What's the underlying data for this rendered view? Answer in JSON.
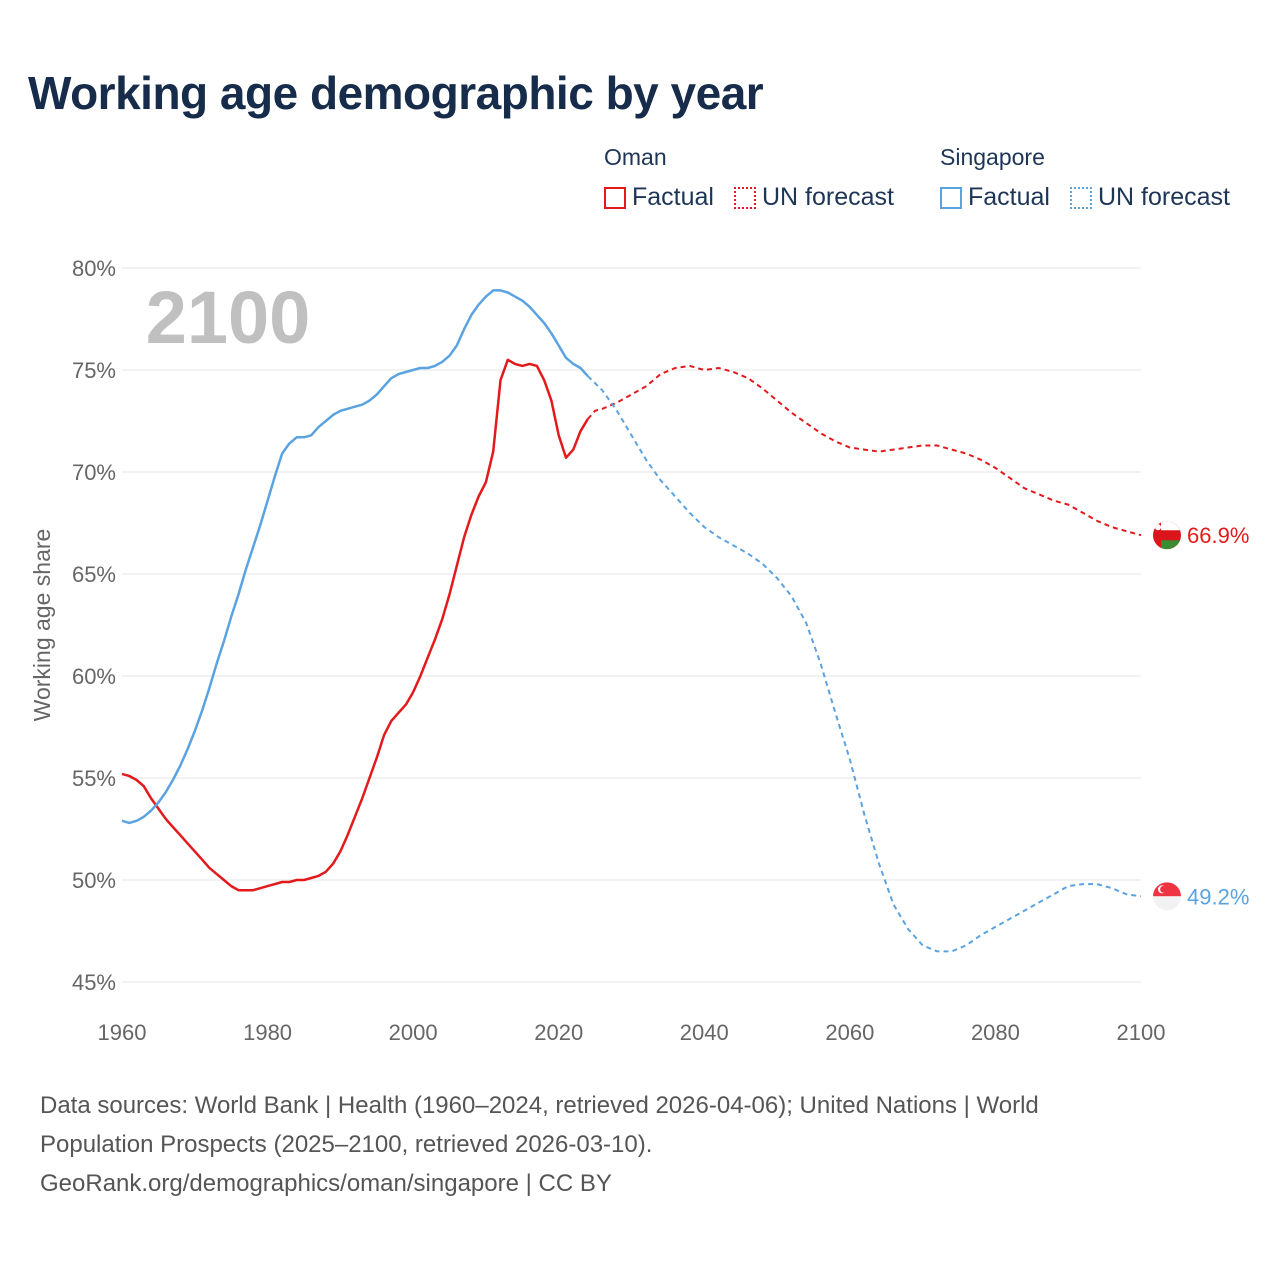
{
  "title": "Working age demographic by year",
  "footer": {
    "line1": "Data sources: World Bank | Health (1960–2024, retrieved 2026-04-06); United Nations | World",
    "line2": "Population Prospects (2025–2100, retrieved 2026-03-10).",
    "line3": "GeoRank.org/demographics/oman/singapore | CC BY"
  },
  "legend": {
    "groups": [
      {
        "name": "Oman",
        "color": "#e31a1c",
        "factual": "Factual",
        "forecast": "UN forecast"
      },
      {
        "name": "Singapore",
        "color": "#5ba3e0",
        "factual": "Factual",
        "forecast": "UN forecast"
      }
    ]
  },
  "chart_data": {
    "type": "line",
    "ylabel": "Working age share",
    "xlabel": "",
    "xlim": [
      1960,
      2100
    ],
    "ylim": [
      45,
      80
    ],
    "xticks": [
      1960,
      1980,
      2000,
      2020,
      2040,
      2060,
      2080,
      2100
    ],
    "yticks": [
      45,
      50,
      55,
      60,
      65,
      70,
      75,
      80
    ],
    "year_watermark": "2100",
    "series": [
      {
        "name": "Oman",
        "color": "#e31a1c",
        "end_label": "66.9%",
        "factual": [
          [
            1960,
            55.2
          ],
          [
            1961,
            55.1
          ],
          [
            1962,
            54.9
          ],
          [
            1963,
            54.6
          ],
          [
            1964,
            54.0
          ],
          [
            1965,
            53.5
          ],
          [
            1966,
            53.0
          ],
          [
            1967,
            52.6
          ],
          [
            1968,
            52.2
          ],
          [
            1969,
            51.8
          ],
          [
            1970,
            51.4
          ],
          [
            1971,
            51.0
          ],
          [
            1972,
            50.6
          ],
          [
            1973,
            50.3
          ],
          [
            1974,
            50.0
          ],
          [
            1975,
            49.7
          ],
          [
            1976,
            49.5
          ],
          [
            1977,
            49.5
          ],
          [
            1978,
            49.5
          ],
          [
            1979,
            49.6
          ],
          [
            1980,
            49.7
          ],
          [
            1981,
            49.8
          ],
          [
            1982,
            49.9
          ],
          [
            1983,
            49.9
          ],
          [
            1984,
            50.0
          ],
          [
            1985,
            50.0
          ],
          [
            1986,
            50.1
          ],
          [
            1987,
            50.2
          ],
          [
            1988,
            50.4
          ],
          [
            1989,
            50.8
          ],
          [
            1990,
            51.4
          ],
          [
            1991,
            52.2
          ],
          [
            1992,
            53.1
          ],
          [
            1993,
            54.0
          ],
          [
            1994,
            55.0
          ],
          [
            1995,
            56.0
          ],
          [
            1996,
            57.1
          ],
          [
            1997,
            57.8
          ],
          [
            1998,
            58.2
          ],
          [
            1999,
            58.6
          ],
          [
            2000,
            59.2
          ],
          [
            2001,
            60.0
          ],
          [
            2002,
            60.9
          ],
          [
            2003,
            61.8
          ],
          [
            2004,
            62.8
          ],
          [
            2005,
            64.0
          ],
          [
            2006,
            65.4
          ],
          [
            2007,
            66.8
          ],
          [
            2008,
            67.9
          ],
          [
            2009,
            68.8
          ],
          [
            2010,
            69.5
          ],
          [
            2011,
            71.0
          ],
          [
            2012,
            74.5
          ],
          [
            2013,
            75.5
          ],
          [
            2014,
            75.3
          ],
          [
            2015,
            75.2
          ],
          [
            2016,
            75.3
          ],
          [
            2017,
            75.2
          ],
          [
            2018,
            74.5
          ],
          [
            2019,
            73.5
          ],
          [
            2020,
            71.8
          ],
          [
            2021,
            70.7
          ],
          [
            2022,
            71.1
          ],
          [
            2023,
            72.0
          ],
          [
            2024,
            72.6
          ]
        ],
        "forecast": [
          [
            2024,
            72.6
          ],
          [
            2025,
            73.0
          ],
          [
            2026,
            73.1
          ],
          [
            2028,
            73.4
          ],
          [
            2030,
            73.8
          ],
          [
            2032,
            74.2
          ],
          [
            2034,
            74.8
          ],
          [
            2036,
            75.1
          ],
          [
            2038,
            75.2
          ],
          [
            2040,
            75.0
          ],
          [
            2042,
            75.1
          ],
          [
            2044,
            74.9
          ],
          [
            2046,
            74.6
          ],
          [
            2048,
            74.1
          ],
          [
            2050,
            73.5
          ],
          [
            2052,
            72.9
          ],
          [
            2054,
            72.4
          ],
          [
            2056,
            71.9
          ],
          [
            2058,
            71.5
          ],
          [
            2060,
            71.2
          ],
          [
            2062,
            71.1
          ],
          [
            2064,
            71.0
          ],
          [
            2066,
            71.1
          ],
          [
            2068,
            71.2
          ],
          [
            2070,
            71.3
          ],
          [
            2072,
            71.3
          ],
          [
            2074,
            71.1
          ],
          [
            2076,
            70.9
          ],
          [
            2078,
            70.6
          ],
          [
            2080,
            70.2
          ],
          [
            2082,
            69.7
          ],
          [
            2084,
            69.2
          ],
          [
            2086,
            68.9
          ],
          [
            2088,
            68.6
          ],
          [
            2090,
            68.4
          ],
          [
            2092,
            68.0
          ],
          [
            2094,
            67.6
          ],
          [
            2096,
            67.3
          ],
          [
            2098,
            67.1
          ],
          [
            2100,
            66.9
          ]
        ]
      },
      {
        "name": "Singapore",
        "color": "#5ba3e0",
        "end_label": "49.2%",
        "factual": [
          [
            1960,
            52.9
          ],
          [
            1961,
            52.8
          ],
          [
            1962,
            52.9
          ],
          [
            1963,
            53.1
          ],
          [
            1964,
            53.4
          ],
          [
            1965,
            53.8
          ],
          [
            1966,
            54.3
          ],
          [
            1967,
            54.9
          ],
          [
            1968,
            55.6
          ],
          [
            1969,
            56.4
          ],
          [
            1970,
            57.3
          ],
          [
            1971,
            58.3
          ],
          [
            1972,
            59.4
          ],
          [
            1973,
            60.6
          ],
          [
            1974,
            61.7
          ],
          [
            1975,
            62.9
          ],
          [
            1976,
            64.0
          ],
          [
            1977,
            65.2
          ],
          [
            1978,
            66.3
          ],
          [
            1979,
            67.4
          ],
          [
            1980,
            68.6
          ],
          [
            1981,
            69.8
          ],
          [
            1982,
            70.9
          ],
          [
            1983,
            71.4
          ],
          [
            1984,
            71.7
          ],
          [
            1985,
            71.7
          ],
          [
            1986,
            71.8
          ],
          [
            1987,
            72.2
          ],
          [
            1988,
            72.5
          ],
          [
            1989,
            72.8
          ],
          [
            1990,
            73.0
          ],
          [
            1991,
            73.1
          ],
          [
            1992,
            73.2
          ],
          [
            1993,
            73.3
          ],
          [
            1994,
            73.5
          ],
          [
            1995,
            73.8
          ],
          [
            1996,
            74.2
          ],
          [
            1997,
            74.6
          ],
          [
            1998,
            74.8
          ],
          [
            1999,
            74.9
          ],
          [
            2000,
            75.0
          ],
          [
            2001,
            75.1
          ],
          [
            2002,
            75.1
          ],
          [
            2003,
            75.2
          ],
          [
            2004,
            75.4
          ],
          [
            2005,
            75.7
          ],
          [
            2006,
            76.2
          ],
          [
            2007,
            77.0
          ],
          [
            2008,
            77.7
          ],
          [
            2009,
            78.2
          ],
          [
            2010,
            78.6
          ],
          [
            2011,
            78.9
          ],
          [
            2012,
            78.9
          ],
          [
            2013,
            78.8
          ],
          [
            2014,
            78.6
          ],
          [
            2015,
            78.4
          ],
          [
            2016,
            78.1
          ],
          [
            2017,
            77.7
          ],
          [
            2018,
            77.3
          ],
          [
            2019,
            76.8
          ],
          [
            2020,
            76.2
          ],
          [
            2021,
            75.6
          ],
          [
            2022,
            75.3
          ],
          [
            2023,
            75.1
          ],
          [
            2024,
            74.7
          ]
        ],
        "forecast": [
          [
            2024,
            74.7
          ],
          [
            2026,
            74.0
          ],
          [
            2028,
            73.0
          ],
          [
            2030,
            71.8
          ],
          [
            2032,
            70.6
          ],
          [
            2034,
            69.6
          ],
          [
            2036,
            68.8
          ],
          [
            2038,
            68.0
          ],
          [
            2040,
            67.3
          ],
          [
            2042,
            66.8
          ],
          [
            2044,
            66.4
          ],
          [
            2046,
            66.0
          ],
          [
            2048,
            65.5
          ],
          [
            2050,
            64.8
          ],
          [
            2052,
            63.9
          ],
          [
            2054,
            62.6
          ],
          [
            2056,
            60.6
          ],
          [
            2058,
            58.2
          ],
          [
            2060,
            55.9
          ],
          [
            2062,
            53.2
          ],
          [
            2064,
            50.8
          ],
          [
            2066,
            48.8
          ],
          [
            2068,
            47.6
          ],
          [
            2070,
            46.8
          ],
          [
            2072,
            46.5
          ],
          [
            2074,
            46.5
          ],
          [
            2076,
            46.8
          ],
          [
            2078,
            47.3
          ],
          [
            2080,
            47.7
          ],
          [
            2082,
            48.1
          ],
          [
            2084,
            48.5
          ],
          [
            2086,
            48.9
          ],
          [
            2088,
            49.3
          ],
          [
            2090,
            49.7
          ],
          [
            2092,
            49.8
          ],
          [
            2094,
            49.8
          ],
          [
            2096,
            49.6
          ],
          [
            2098,
            49.3
          ],
          [
            2100,
            49.2
          ]
        ]
      }
    ]
  }
}
